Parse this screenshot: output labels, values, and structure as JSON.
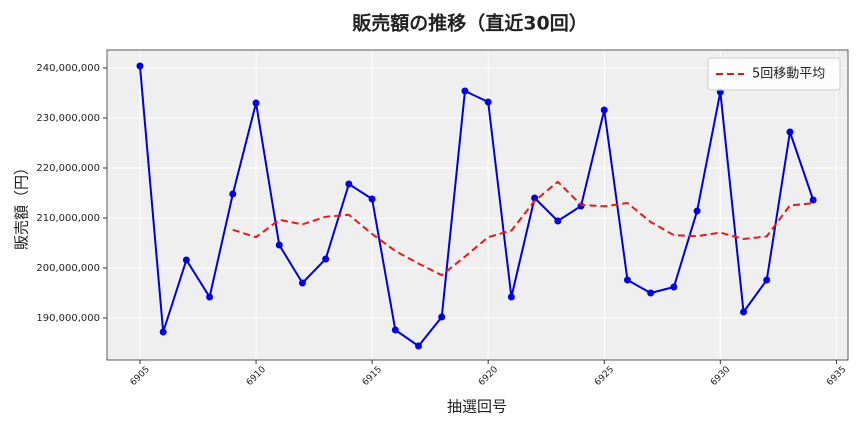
{
  "chart_data": {
    "type": "line",
    "title": "販売額の推移（直近30回）",
    "x_label": "抽選回号",
    "y_label": "販売額（円）",
    "x": [
      6905,
      6906,
      6907,
      6908,
      6909,
      6910,
      6911,
      6912,
      6913,
      6914,
      6915,
      6916,
      6917,
      6918,
      6919,
      6920,
      6921,
      6922,
      6923,
      6924,
      6925,
      6926,
      6927,
      6928,
      6929,
      6930,
      6931,
      6932,
      6933,
      6934
    ],
    "series": [
      {
        "name": null,
        "color": "#0000dd",
        "style": "solid",
        "markers": true,
        "values": [
          240400000,
          187200000,
          201600000,
          194200000,
          214800000,
          233000000,
          204600000,
          197000000,
          201800000,
          216800000,
          213800000,
          187600000,
          184400000,
          190200000,
          235400000,
          233200000,
          194200000,
          214000000,
          209400000,
          212400000,
          231600000,
          197600000,
          195000000,
          196200000,
          211400000,
          235200000,
          191200000,
          197600000,
          227200000,
          213600000
        ]
      },
      {
        "name": "5回移動平均",
        "color": "#e31a1c",
        "style": "dashed",
        "markers": false,
        "values": [
          null,
          null,
          null,
          null,
          207640000,
          206160000,
          209640000,
          208720000,
          210240000,
          210640000,
          206800000,
          203400000,
          200880000,
          198560000,
          202280000,
          206160000,
          207480000,
          213400000,
          217240000,
          212640000,
          212320000,
          213000000,
          209200000,
          206560000,
          206360000,
          207080000,
          205800000,
          206320000,
          212520000,
          212960000
        ]
      }
    ],
    "xlim": [
      6903.58,
      6935.5
    ],
    "xticks": [
      6905,
      6910,
      6915,
      6920,
      6925,
      6930,
      6935
    ],
    "ylim": [
      181600000,
      243600000
    ],
    "yticks": [
      {
        "value": 190000000,
        "label": "190,000,000"
      },
      {
        "value": 200000000,
        "label": "200,000,000"
      },
      {
        "value": 210000000,
        "label": "210,000,000"
      },
      {
        "value": 220000000,
        "label": "220,000,000"
      },
      {
        "value": 230000000,
        "label": "230,000,000"
      },
      {
        "value": 240000000,
        "label": "240,000,000"
      }
    ],
    "grid": true,
    "legend": "upper right"
  }
}
